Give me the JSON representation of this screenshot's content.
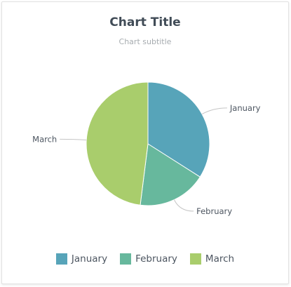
{
  "chart_data": {
    "type": "pie",
    "title": "Chart Title",
    "subtitle": "Chart subtitle",
    "categories": [
      "January",
      "February",
      "March"
    ],
    "values": [
      34,
      18,
      48
    ],
    "colors": [
      "#57a4b9",
      "#67b89d",
      "#a9cd6c"
    ],
    "legend_position": "bottom",
    "start_angle": "top",
    "direction": "clockwise"
  }
}
